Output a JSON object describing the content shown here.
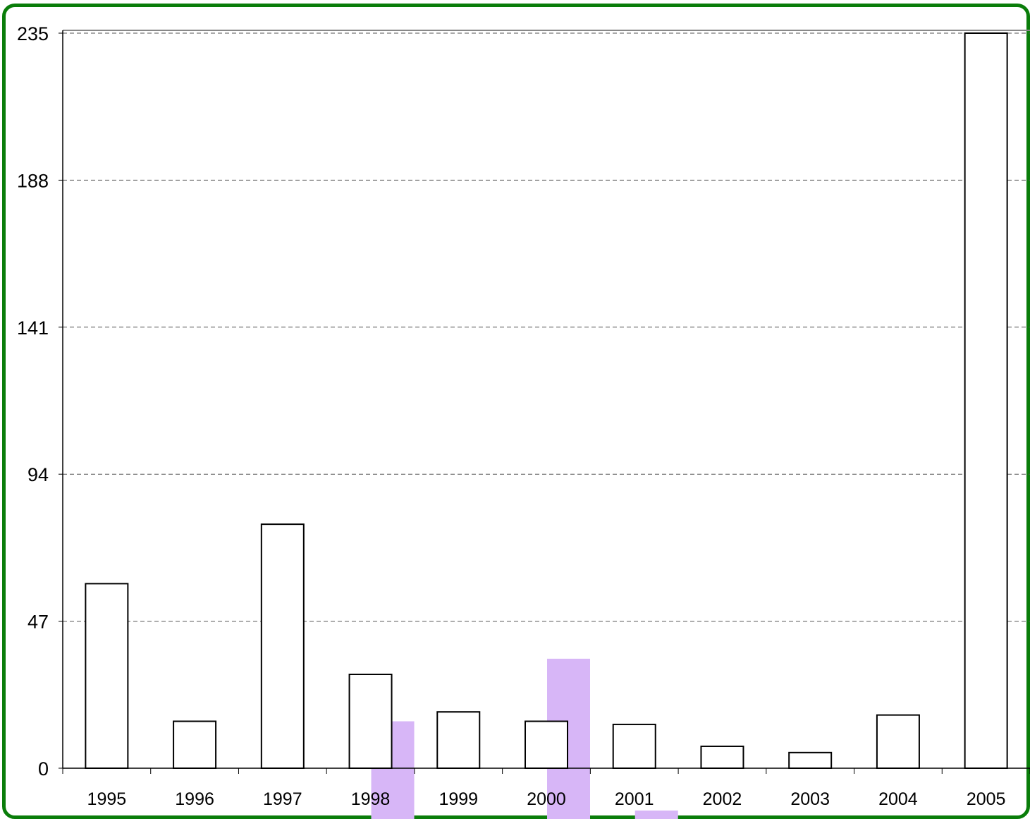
{
  "chart_data": {
    "type": "bar",
    "title": "",
    "xlabel": "",
    "ylabel": "",
    "categories": [
      "1995",
      "1996",
      "1997",
      "1998",
      "1999",
      "2000",
      "2001",
      "2002",
      "2003",
      "2004",
      "2005"
    ],
    "series": [
      {
        "values": [
          59,
          15,
          78,
          30,
          18,
          15,
          14,
          7,
          5,
          17,
          235
        ]
      }
    ],
    "overlay_series": [
      {
        "categories": [
          "1998",
          "2000",
          "2001"
        ],
        "values": [
          15,
          35,
          0.5
        ]
      }
    ],
    "ylim": [
      0,
      235
    ],
    "yticks": [
      0,
      47,
      94,
      141,
      188,
      235
    ],
    "grid": true,
    "gridline_style": "dashed",
    "legend": "none"
  },
  "colors": {
    "frame": "#0a7d0a",
    "bar_fill": "#ffffff",
    "bar_stroke": "#000000",
    "overlay_fill": "#d7b6f7",
    "grid": "#555555"
  }
}
